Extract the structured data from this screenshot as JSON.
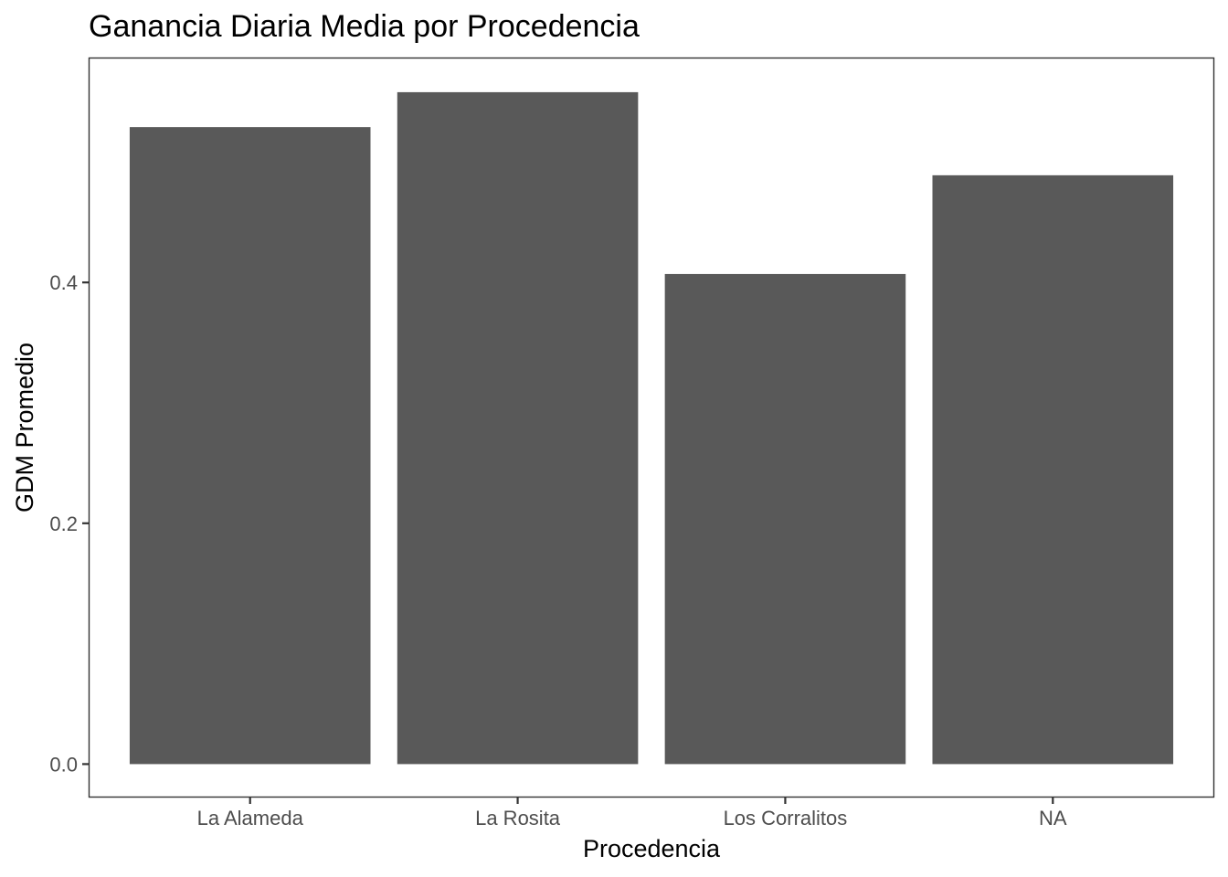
{
  "chart_data": {
    "type": "bar",
    "title": "Ganancia Diaria Media por Procedencia",
    "xlabel": "Procedencia",
    "ylabel": "GDM Promedio",
    "categories": [
      "La Alameda",
      "La Rosita",
      "Los Corralitos",
      "NA"
    ],
    "values": [
      0.529,
      0.558,
      0.407,
      0.489
    ],
    "ylim": [
      -0.027,
      0.586
    ],
    "yticks": [
      0.0,
      0.2,
      0.4
    ],
    "ytick_labels": [
      "0.0",
      "0.2",
      "0.4"
    ],
    "grid": false,
    "legend": "none",
    "bar_color": "#595959"
  }
}
